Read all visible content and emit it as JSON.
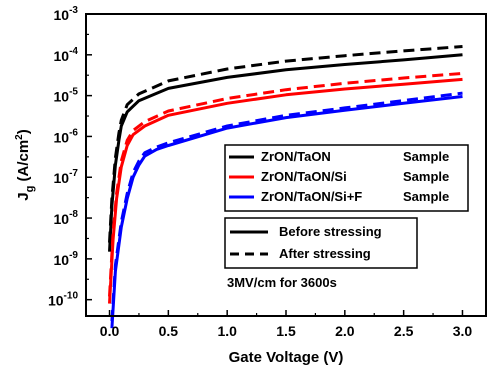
{
  "chart_data": {
    "type": "line",
    "title": "",
    "xlabel": "Gate Voltage (V)",
    "ylabel_main": "J",
    "ylabel_sub": "g",
    "ylabel_unit_pre": " (A/cm",
    "ylabel_unit_sup": "2",
    "ylabel_unit_post": ")",
    "xlim": [
      -0.2,
      3.2
    ],
    "ylim_log10": [
      -10.4,
      -3
    ],
    "y_scale": "log",
    "grid": false,
    "x_ticks": [
      "0.0",
      "0.5",
      "1.0",
      "1.5",
      "2.0",
      "2.5",
      "3.0"
    ],
    "y_ticks": [
      {
        "base": "10",
        "exp": "-3"
      },
      {
        "base": "10",
        "exp": "-4"
      },
      {
        "base": "10",
        "exp": "-5"
      },
      {
        "base": "10",
        "exp": "-6"
      },
      {
        "base": "10",
        "exp": "-7"
      },
      {
        "base": "10",
        "exp": "-8"
      },
      {
        "base": "10",
        "exp": "-9"
      },
      {
        "base": "10",
        "exp": "-10"
      }
    ],
    "series": [
      {
        "color": "#000000",
        "dash": false,
        "x": [
          0.0,
          0.02,
          0.05,
          0.08,
          0.1,
          0.15,
          0.25,
          0.5,
          1.0,
          1.5,
          2.0,
          2.5,
          3.0
        ],
        "y": [
          1.5e-09,
          2e-08,
          2e-07,
          8e-07,
          1.8e-06,
          4e-06,
          7.5e-06,
          1.5e-05,
          2.8e-05,
          4.3e-05,
          5.8e-05,
          7.5e-05,
          0.0001
        ]
      },
      {
        "color": "#000000",
        "dash": true,
        "x": [
          0.0,
          0.02,
          0.05,
          0.08,
          0.1,
          0.15,
          0.25,
          0.5,
          1.0,
          1.5,
          2.0,
          2.5,
          3.0
        ],
        "y": [
          2.5e-09,
          3e-08,
          3e-07,
          1.2e-06,
          2.5e-06,
          6e-06,
          1.1e-05,
          2.3e-05,
          4.5e-05,
          7e-05,
          9.5e-05,
          0.000125,
          0.00016
        ]
      },
      {
        "color": "#ff0000",
        "dash": false,
        "x": [
          0.0,
          0.03,
          0.06,
          0.1,
          0.15,
          0.2,
          0.3,
          0.5,
          1.0,
          1.5,
          2.0,
          2.5,
          3.0
        ],
        "y": [
          8e-11,
          3e-09,
          3e-08,
          1.8e-07,
          6e-07,
          1.1e-06,
          1.8e-06,
          3.3e-06,
          6.5e-06,
          1.05e-05,
          1.45e-05,
          1.9e-05,
          2.5e-05
        ]
      },
      {
        "color": "#ff0000",
        "dash": true,
        "x": [
          0.0,
          0.03,
          0.06,
          0.1,
          0.15,
          0.2,
          0.3,
          0.5,
          1.0,
          1.5,
          2.0,
          2.5,
          3.0
        ],
        "y": [
          1.2e-10,
          4.5e-09,
          4e-08,
          2.5e-07,
          8e-07,
          1.4e-06,
          2.3e-06,
          4.2e-06,
          8.5e-06,
          1.4e-05,
          2e-05,
          2.7e-05,
          3.5e-05
        ]
      },
      {
        "color": "#0000ff",
        "dash": false,
        "x": [
          0.02,
          0.05,
          0.1,
          0.15,
          0.2,
          0.25,
          0.3,
          0.4,
          0.5,
          1.0,
          1.5,
          2.0,
          2.5,
          3.0
        ],
        "y": [
          2e-11,
          5e-10,
          6e-09,
          3e-08,
          1e-07,
          2e-07,
          3.3e-07,
          4.8e-07,
          6e-07,
          1.6e-06,
          2.9e-06,
          4.4e-06,
          6.5e-06,
          9.5e-06
        ]
      },
      {
        "color": "#0000ff",
        "dash": true,
        "x": [
          0.02,
          0.05,
          0.1,
          0.15,
          0.2,
          0.25,
          0.3,
          0.4,
          0.5,
          1.0,
          1.5,
          2.0,
          2.5,
          3.0
        ],
        "y": [
          3e-11,
          7e-10,
          8e-09,
          4e-08,
          1.3e-07,
          2.5e-07,
          4e-07,
          5.5e-07,
          7e-07,
          1.8e-06,
          3.3e-06,
          5e-06,
          7.6e-06,
          1.15e-05
        ]
      }
    ],
    "legend_samples": [
      {
        "label": "ZrON/TaON",
        "suffix": "Sample",
        "color": "#000000"
      },
      {
        "label": "ZrON/TaON/Si",
        "suffix": "Sample",
        "color": "#ff0000"
      },
      {
        "label": "ZrON/TaON/Si+F",
        "suffix": "Sample",
        "color": "#0000ff"
      }
    ],
    "legend_stress": [
      {
        "label": "Before stressing",
        "dash": false
      },
      {
        "label": "After stressing",
        "dash": true
      }
    ],
    "annotation": "3MV/cm for 3600s"
  }
}
